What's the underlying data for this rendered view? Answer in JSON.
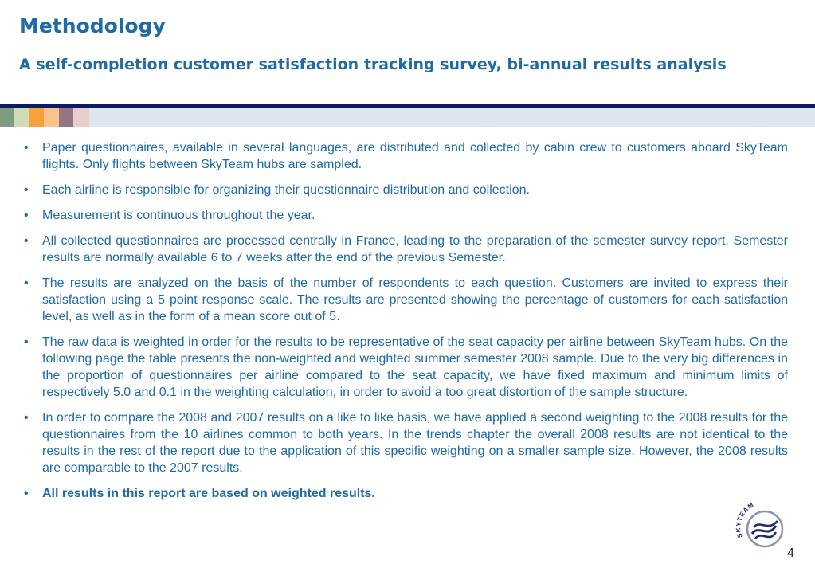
{
  "header": {
    "title": "Methodology",
    "subtitle": "A self-completion customer satisfaction tracking survey, bi-annual results analysis"
  },
  "colors": {
    "accent": "#1f6ba6",
    "rule": "#0d1a66",
    "stripe": [
      "#7f9c7f",
      "#cfdcb8",
      "#f5a23a",
      "#f8c48a",
      "#957488",
      "#e8cfcc",
      "#dde6ef"
    ]
  },
  "bullets": [
    {
      "text": "Paper questionnaires, available in several languages, are distributed and collected by cabin crew to customers aboard SkyTeam flights. Only flights between SkyTeam hubs are sampled.",
      "bold": false
    },
    {
      "text": "Each airline is responsible for organizing their questionnaire distribution and collection.",
      "bold": false
    },
    {
      "text": "Measurement is continuous throughout the year.",
      "bold": false
    },
    {
      "text": "All collected questionnaires are processed centrally in France, leading to the preparation of the semester survey report. Semester results are normally available 6 to 7 weeks after the end of the previous Semester.",
      "bold": false
    },
    {
      "text": "The results are analyzed on the basis of the number of respondents to each question. Customers are invited to express their satisfaction using a 5 point response scale. The results are presented showing the percentage of customers for each satisfaction level, as well as in the form of a mean score out of 5.",
      "bold": false
    },
    {
      "text": "The raw data is weighted in order for the results to be representative of the seat capacity per airline between SkyTeam hubs. On the following page the table presents the non-weighted and weighted summer semester 2008 sample. Due to the very big differences in the proportion of questionnaires per airline compared to the seat capacity, we have fixed maximum and minimum limits of respectively 5.0 and 0.1 in the weighting calculation, in order to avoid a too great distortion of the sample structure.",
      "bold": false
    },
    {
      "text": "In order to compare the 2008 and 2007 results on a like to like basis, we have applied a second weighting to the 2008 results for the questionnaires from the 10 airlines common to both years. In the trends chapter the overall 2008 results are not identical to the results in the rest of the report due to the application of this specific weighting on a smaller sample size. However, the 2008 results are comparable to the 2007 results.",
      "bold": false
    },
    {
      "text": "All results in this report are based on weighted results.",
      "bold": true
    }
  ],
  "logo": {
    "text": "SKYTEAM"
  },
  "footer": {
    "page_number": "4"
  }
}
